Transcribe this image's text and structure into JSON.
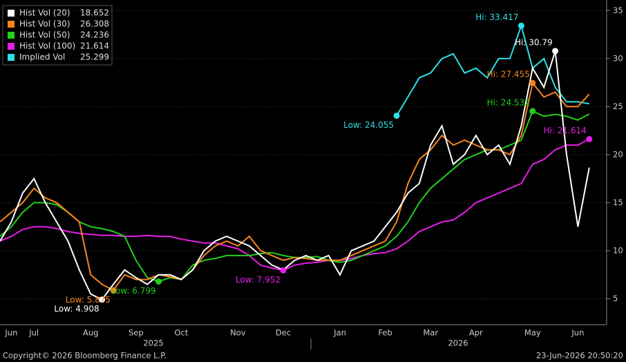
{
  "chart_data": {
    "type": "line",
    "categories": [
      null,
      "Jun",
      null,
      "Jul",
      null,
      null,
      null,
      null,
      "Aug",
      null,
      null,
      null,
      "Sep",
      null,
      null,
      null,
      "Oct",
      null,
      null,
      null,
      null,
      "Nov",
      null,
      null,
      null,
      "Dec",
      null,
      null,
      null,
      null,
      "Jan",
      null,
      null,
      null,
      "Feb",
      null,
      null,
      null,
      "Mar",
      null,
      null,
      null,
      "Apr",
      null,
      null,
      null,
      null,
      "May",
      null,
      null,
      null,
      "Jun",
      null
    ],
    "year_labels": [
      "2025",
      "2026"
    ],
    "ylim": [
      2.3,
      36.1
    ],
    "yticks": [
      5,
      10,
      15,
      20,
      25,
      30,
      35
    ],
    "grid": true,
    "legend": "top-left",
    "series": [
      {
        "name": "Hist Vol (20)",
        "color": "#ffffff",
        "low_label": "Low: 4.908",
        "high_label": "Hi: 30.79",
        "values": [
          11,
          13,
          16,
          17.5,
          15,
          13,
          11,
          8,
          5.5,
          4.908,
          6.5,
          8,
          7.2,
          6.5,
          7.5,
          7.5,
          7,
          8,
          10,
          11,
          11.5,
          11,
          10.5,
          9.5,
          8.5,
          8,
          9,
          9.5,
          9,
          9.5,
          7.5,
          10,
          10.5,
          11,
          12.5,
          14,
          16,
          17,
          21,
          23,
          19,
          20,
          22,
          20,
          21,
          19,
          23,
          29,
          27,
          30.79,
          20,
          12.5,
          18.652
        ]
      },
      {
        "name": "Hist Vol (30)",
        "color": "#f7851f",
        "low_label": "Low: 5.875",
        "high_label": "Hi: 27.455",
        "values": [
          13,
          14,
          15,
          16.5,
          15.5,
          15,
          14,
          13,
          7.5,
          6.5,
          5.875,
          7.5,
          7,
          7,
          7.5,
          7.3,
          7,
          8,
          9.5,
          10.5,
          11,
          10.5,
          11.5,
          10,
          9.5,
          9,
          9.3,
          9.2,
          9,
          9,
          9,
          9.5,
          10,
          10.5,
          11,
          13,
          17,
          19.5,
          20.5,
          22,
          21,
          21.5,
          21,
          20.5,
          20.5,
          20,
          22,
          27.455,
          26,
          26.5,
          25,
          25,
          26.308
        ]
      },
      {
        "name": "Hist Vol (50)",
        "color": "#22d01c",
        "low_label": "Low: 6.799",
        "high_label": "Hi: 24.532",
        "values": [
          11.5,
          12.5,
          14,
          15,
          15,
          14.8,
          14,
          13,
          12.5,
          12.3,
          12,
          11.5,
          9,
          7.2,
          6.799,
          7.2,
          7,
          8.5,
          9,
          9.2,
          9.5,
          9.5,
          9.5,
          9.7,
          9.8,
          9.5,
          9.3,
          9.3,
          9.4,
          9,
          8.8,
          9,
          9.5,
          10,
          10.5,
          11.5,
          13,
          15,
          16.5,
          17.5,
          18.5,
          19.5,
          20,
          20.5,
          20.5,
          21,
          21.5,
          24.532,
          24,
          24.2,
          24,
          23.6,
          24.236
        ]
      },
      {
        "name": "Hist Vol (100)",
        "color": "#e81ee8",
        "low_label": "Low: 7.952",
        "high_label": "Hi: 21.614",
        "values": [
          11,
          11.5,
          12.2,
          12.5,
          12.5,
          12.3,
          12,
          11.8,
          11.7,
          11.6,
          11.6,
          11.5,
          11.5,
          11.6,
          11.5,
          11.5,
          11.2,
          11,
          10.8,
          10.8,
          10.5,
          10.2,
          9.5,
          8.5,
          8.2,
          7.952,
          8.5,
          8.7,
          8.8,
          9,
          9,
          9.2,
          9.5,
          9.7,
          9.8,
          10.2,
          11,
          12,
          12.5,
          13,
          13.2,
          14,
          15,
          15.5,
          16,
          16.5,
          17,
          19,
          19.5,
          20.5,
          21,
          21,
          21.614
        ]
      },
      {
        "name": "Implied Vol",
        "color": "#2ee0e8",
        "low_label": "Low: 24.055",
        "high_label": "Hi: 33.417",
        "values": [
          null,
          null,
          null,
          null,
          null,
          null,
          null,
          null,
          null,
          null,
          null,
          null,
          null,
          null,
          null,
          null,
          null,
          null,
          null,
          null,
          null,
          null,
          null,
          null,
          null,
          null,
          null,
          null,
          null,
          null,
          null,
          null,
          null,
          null,
          null,
          24.055,
          26,
          28,
          28.5,
          30,
          30.5,
          28.5,
          29,
          28,
          30,
          30,
          33.417,
          29,
          30,
          27,
          25.5,
          25.5,
          25.299
        ]
      }
    ]
  },
  "footer": {
    "copyright": "Copyright© 2026 Bloomberg Finance L.P.",
    "timestamp": "23-Jun-2026 20:50:20"
  }
}
